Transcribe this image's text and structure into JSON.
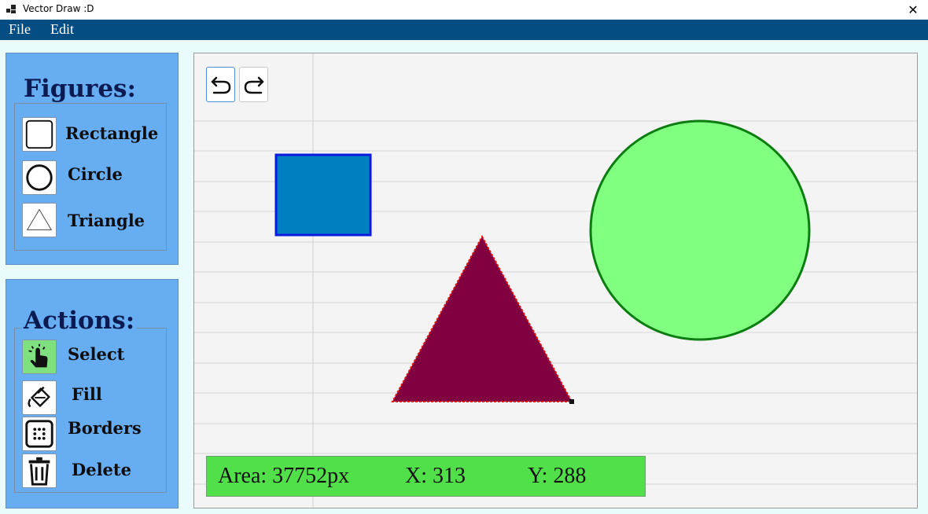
{
  "window": {
    "title": "Vector Draw :D",
    "app_icon": "app-window-icon",
    "close_icon": "close-icon"
  },
  "menu": {
    "items": [
      "File",
      "Edit"
    ]
  },
  "figures": {
    "heading": "Figures:",
    "tools": [
      {
        "label": "Rectangle",
        "icon": "rectangle-icon"
      },
      {
        "label": "Circle",
        "icon": "circle-icon"
      },
      {
        "label": "Triangle",
        "icon": "triangle-icon"
      }
    ]
  },
  "actions": {
    "heading": "Actions:",
    "tools": [
      {
        "label": "Select",
        "icon": "pointer-hand-icon",
        "active": true
      },
      {
        "label": "Fill",
        "icon": "paint-bucket-icon"
      },
      {
        "label": "Borders",
        "icon": "border-dots-icon"
      },
      {
        "label": "Delete",
        "icon": "trash-icon"
      }
    ]
  },
  "history": {
    "undo_icon": "undo-icon",
    "redo_icon": "redo-icon"
  },
  "canvas_shapes": [
    {
      "type": "rectangle",
      "fill": "#0080c0",
      "stroke": "#0a1be0"
    },
    {
      "type": "triangle",
      "fill": "#800040",
      "stroke": "#e01515",
      "selected": true
    },
    {
      "type": "circle",
      "fill": "#80ff80",
      "stroke": "#0c7d10"
    }
  ],
  "status": {
    "area": "Area: 37752px",
    "x": "X: 313",
    "y": "Y: 288"
  },
  "colors": {
    "menubar": "#034d83",
    "panel": "#66adf2",
    "heading": "#0c1a52",
    "status_bar": "#52e04a",
    "select_active": "#7fe07f"
  }
}
